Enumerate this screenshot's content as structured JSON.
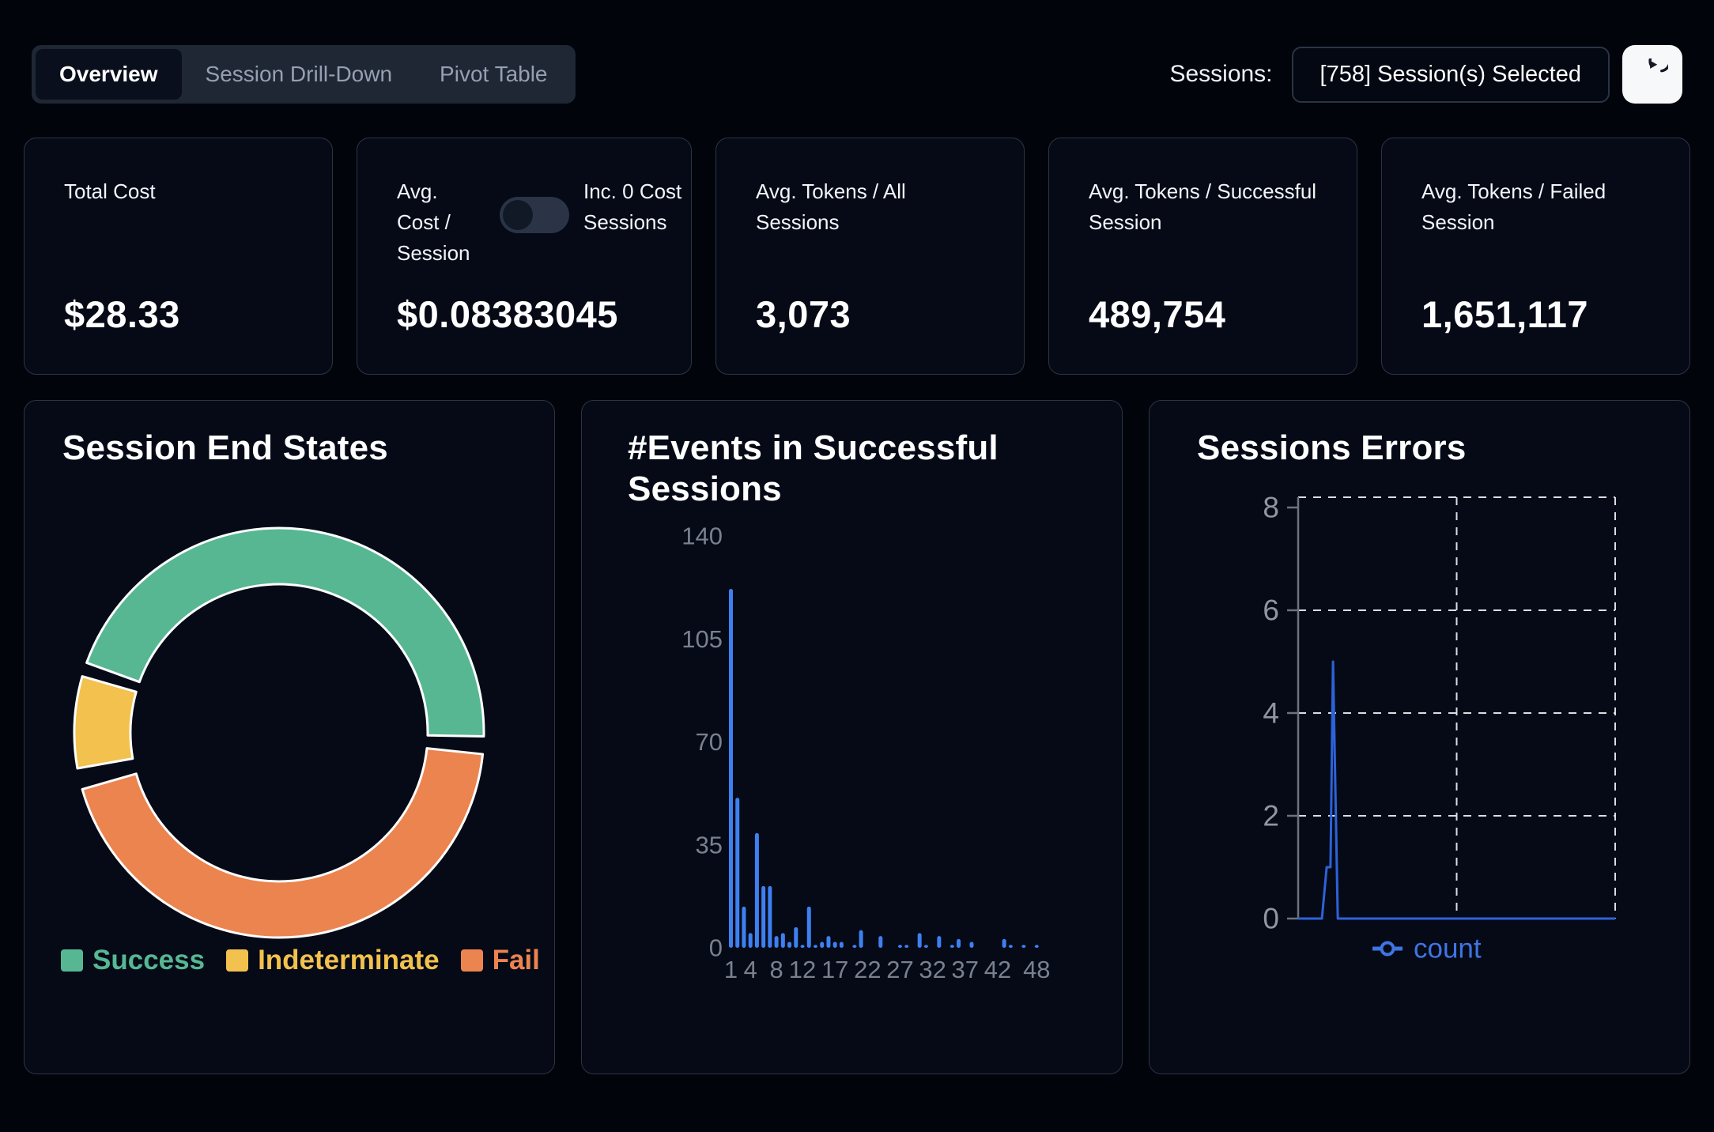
{
  "header": {
    "tabs": [
      {
        "label": "Overview",
        "active": true
      },
      {
        "label": "Session Drill-Down",
        "active": false
      },
      {
        "label": "Pivot Table",
        "active": false
      }
    ],
    "sessions_label": "Sessions:",
    "sessions_value": "[758] Session(s) Selected",
    "refresh_icon": "refresh-icon"
  },
  "stat_cards": [
    {
      "label": "Total Cost",
      "value": "$28.33"
    },
    {
      "label": "Avg. Cost / Session",
      "toggle_label": "Inc. 0 Cost Sessions",
      "toggle_on": false,
      "value": "$0.08383045"
    },
    {
      "label": "Avg. Tokens / All Sessions",
      "value": "3,073"
    },
    {
      "label": "Avg. Tokens / Successful Session",
      "value": "489,754"
    },
    {
      "label": "Avg. Tokens / Failed Session",
      "value": "1,651,117"
    }
  ],
  "colors": {
    "page_bg": "#01040b",
    "card_bg": "#050a16",
    "card_border": "#2d3544",
    "success": "#57b793",
    "indeterminate": "#f2c14e",
    "fail": "#ec8450",
    "bar_blue": "#3e80f2",
    "line_blue": "#2d62d9",
    "legend_count_text": "#3f74e3",
    "axis_gray": "#8f95a1"
  },
  "chart_data": [
    {
      "type": "pie",
      "donut": true,
      "title": "Session End States",
      "labels": [
        "Success",
        "Indeterminate",
        "Fail"
      ],
      "values_pct": [
        46.5,
        7.5,
        46.0
      ],
      "segments": [
        {
          "label": "Success",
          "color": "#57b793",
          "from_deg": -70,
          "to_deg": 91,
          "pct": 46.5
        },
        {
          "label": "Fail",
          "color": "#ec8450",
          "from_deg": 96,
          "to_deg": 254,
          "pct": 46.0
        },
        {
          "label": "Indeterminate",
          "color": "#f2c14e",
          "from_deg": 260,
          "to_deg": 286,
          "pct": 7.5
        }
      ],
      "legend": [
        {
          "label": "Success",
          "color": "#57b793"
        },
        {
          "label": "Indeterminate",
          "color": "#f2c14e"
        },
        {
          "label": "Fail",
          "color": "#ec8450"
        }
      ],
      "legend_position": "bottom"
    },
    {
      "type": "bar",
      "title": "#Events in Successful Sessions",
      "x_start": 1,
      "values": [
        122,
        51,
        14,
        5,
        39,
        21,
        21,
        4,
        5,
        2,
        7,
        1,
        14,
        1,
        2,
        4,
        2,
        2,
        0,
        1,
        6,
        0,
        0,
        4,
        0,
        0,
        1,
        1,
        0,
        5,
        1,
        0,
        4,
        0,
        1,
        3,
        0,
        2,
        0,
        0,
        0,
        0,
        3,
        1,
        0,
        1,
        0,
        1
      ],
      "xticks": [
        1,
        4,
        8,
        12,
        17,
        22,
        27,
        32,
        37,
        42,
        48
      ],
      "yticks": [
        0,
        35,
        70,
        105,
        140
      ],
      "ylim": [
        0,
        140
      ],
      "bar_color": "#3e80f2",
      "grid": false,
      "xlabel": "",
      "ylabel": ""
    },
    {
      "type": "line",
      "title": "Sessions Errors",
      "series": [
        {
          "name": "count",
          "color": "#2d62d9",
          "points": [
            [
              0,
              0
            ],
            [
              7.5,
              0
            ],
            [
              9,
              1
            ],
            [
              10.2,
              1
            ],
            [
              11,
              5
            ],
            [
              12.5,
              0
            ],
            [
              100,
              0
            ]
          ]
        }
      ],
      "yticks": [
        0,
        2,
        4,
        6,
        8
      ],
      "ylim": [
        0,
        8.2
      ],
      "xlim": [
        0,
        100
      ],
      "grid": "dashed",
      "legend_position": "bottom",
      "legend_text_color": "#3f74e3"
    }
  ]
}
